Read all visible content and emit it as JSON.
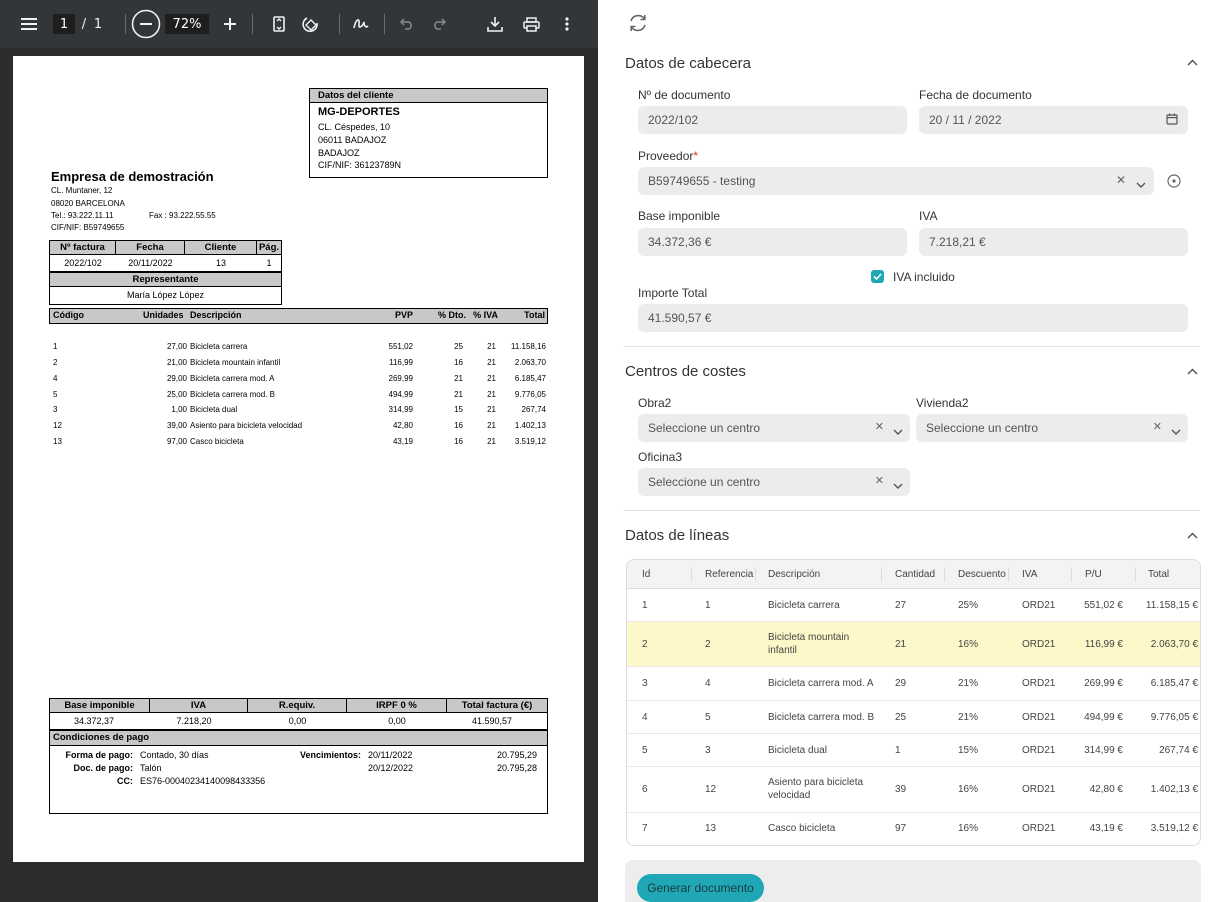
{
  "viewer": {
    "page_current": "1",
    "page_sep": "/",
    "page_total": "1",
    "zoom": "72%"
  },
  "pdf": {
    "client_header": "Datos del cliente",
    "client_name": "MG-DEPORTES",
    "client_lines": [
      "CL. Céspedes, 10",
      "06011 BADAJOZ",
      "BADAJOZ",
      "CIF/NIF:  36123789N"
    ],
    "company_name": "Empresa de demostración",
    "company_lines": [
      "CL. Muntaner, 12",
      "08020 BARCELONA"
    ],
    "company_tel": "Tel.: 93.222.11.11",
    "company_fax": "Fax : 93.222.55.55",
    "company_cif": "CIF/NIF: B59749655",
    "info_headers": [
      "Nº factura",
      "Fecha",
      "Cliente",
      "Pág."
    ],
    "info_values": [
      "2022/102",
      "20/11/2022",
      "13",
      "1"
    ],
    "rep_header": "Representante",
    "rep_value": "María López López",
    "lines_headers": [
      "Código",
      "Unidades",
      "Descripción",
      "PVP",
      "% Dto.",
      "% IVA",
      "Total"
    ],
    "lines": [
      [
        "1",
        "27,00",
        "Bicicleta carrera",
        "551,02",
        "25",
        "21",
        "11.158,16"
      ],
      [
        "2",
        "21,00",
        "Bicicleta mountain infantil",
        "116,99",
        "16",
        "21",
        "2.063,70"
      ],
      [
        "4",
        "29,00",
        "Bicicleta carrera mod. A",
        "269,99",
        "21",
        "21",
        "6.185,47"
      ],
      [
        "5",
        "25,00",
        "Bicicleta carrera mod. B",
        "494,99",
        "21",
        "21",
        "9.776,05"
      ],
      [
        "3",
        "1,00",
        "Bicicleta dual",
        "314,99",
        "15",
        "21",
        "267,74"
      ],
      [
        "12",
        "39,00",
        "Asiento para bicicleta velocidad",
        "42,80",
        "16",
        "21",
        "1.402,13"
      ],
      [
        "13",
        "97,00",
        "Casco bicicleta",
        "43,19",
        "16",
        "21",
        "3.519,12"
      ]
    ],
    "totals_headers": [
      "Base imponible",
      "IVA",
      "R.equiv.",
      "IRPF 0 %",
      "Total factura (€)"
    ],
    "totals_values": [
      "34.372,37",
      "7.218,20",
      "0,00",
      "0,00",
      "41.590,57"
    ],
    "cond_header": "Condiciones de pago",
    "forma_label": "Forma de pago:",
    "forma_value": "Contado, 30 días",
    "doc_label": "Doc. de pago:",
    "doc_value": "Talón",
    "cc_label": "CC:",
    "cc_value": "ES76-00040234140098433356",
    "venc_label": "Vencimientos:",
    "venc_dates": [
      "20/11/2022",
      "20/12/2022"
    ],
    "venc_amounts": [
      "20.795,29",
      "20.795,28"
    ]
  },
  "form": {
    "cabecera": {
      "title": "Datos de cabecera",
      "doc_num_label": "Nº de documento",
      "doc_num_value": "2022/102",
      "fecha_label": "Fecha de documento",
      "fecha_value": "20 / 11 / 2022",
      "proveedor_label": "Proveedor",
      "required_mark": "*",
      "proveedor_value": "B59749655 - testing",
      "base_label": "Base imponible",
      "base_value": "34.372,36 €",
      "iva_label": "IVA",
      "iva_value": "7.218,21 €",
      "iva_incluido_label": "IVA incluido",
      "importe_label": "Importe Total",
      "importe_value": "41.590,57 €"
    },
    "costes": {
      "title": "Centros de costes",
      "obra_label": "Obra2",
      "vivienda_label": "Vivienda2",
      "oficina_label": "Oficina3",
      "placeholder": "Seleccione un centro"
    },
    "lineas": {
      "title": "Datos de líneas",
      "headers": [
        "Id",
        "Referencia",
        "Descripción",
        "Cantidad",
        "Descuento",
        "IVA",
        "P/U",
        "Total"
      ],
      "rows": [
        [
          "1",
          "1",
          "Bicicleta carrera",
          "27",
          "25%",
          "ORD21",
          "551,02 €",
          "11.158,15 €"
        ],
        [
          "2",
          "2",
          "Bicicleta mountain infantil",
          "21",
          "16%",
          "ORD21",
          "116,99 €",
          "2.063,70 €"
        ],
        [
          "3",
          "4",
          "Bicicleta carrera mod. A",
          "29",
          "21%",
          "ORD21",
          "269,99 €",
          "6.185,47 €"
        ],
        [
          "4",
          "5",
          "Bicicleta carrera mod. B",
          "25",
          "21%",
          "ORD21",
          "494,99 €",
          "9.776,05 €"
        ],
        [
          "5",
          "3",
          "Bicicleta dual",
          "1",
          "15%",
          "ORD21",
          "314,99 €",
          "267,74 €"
        ],
        [
          "6",
          "12",
          "Asiento para bicicleta velocidad",
          "39",
          "16%",
          "ORD21",
          "42,80 €",
          "1.402,13 €"
        ],
        [
          "7",
          "13",
          "Casco bicicleta",
          "97",
          "16%",
          "ORD21",
          "43,19 €",
          "3.519,12 €"
        ]
      ]
    },
    "generate_label": "Generar documento"
  },
  "colors": {
    "accent": "#20a7b5",
    "highlight_row": "#fdf8c9",
    "toolbar": "#323639"
  }
}
